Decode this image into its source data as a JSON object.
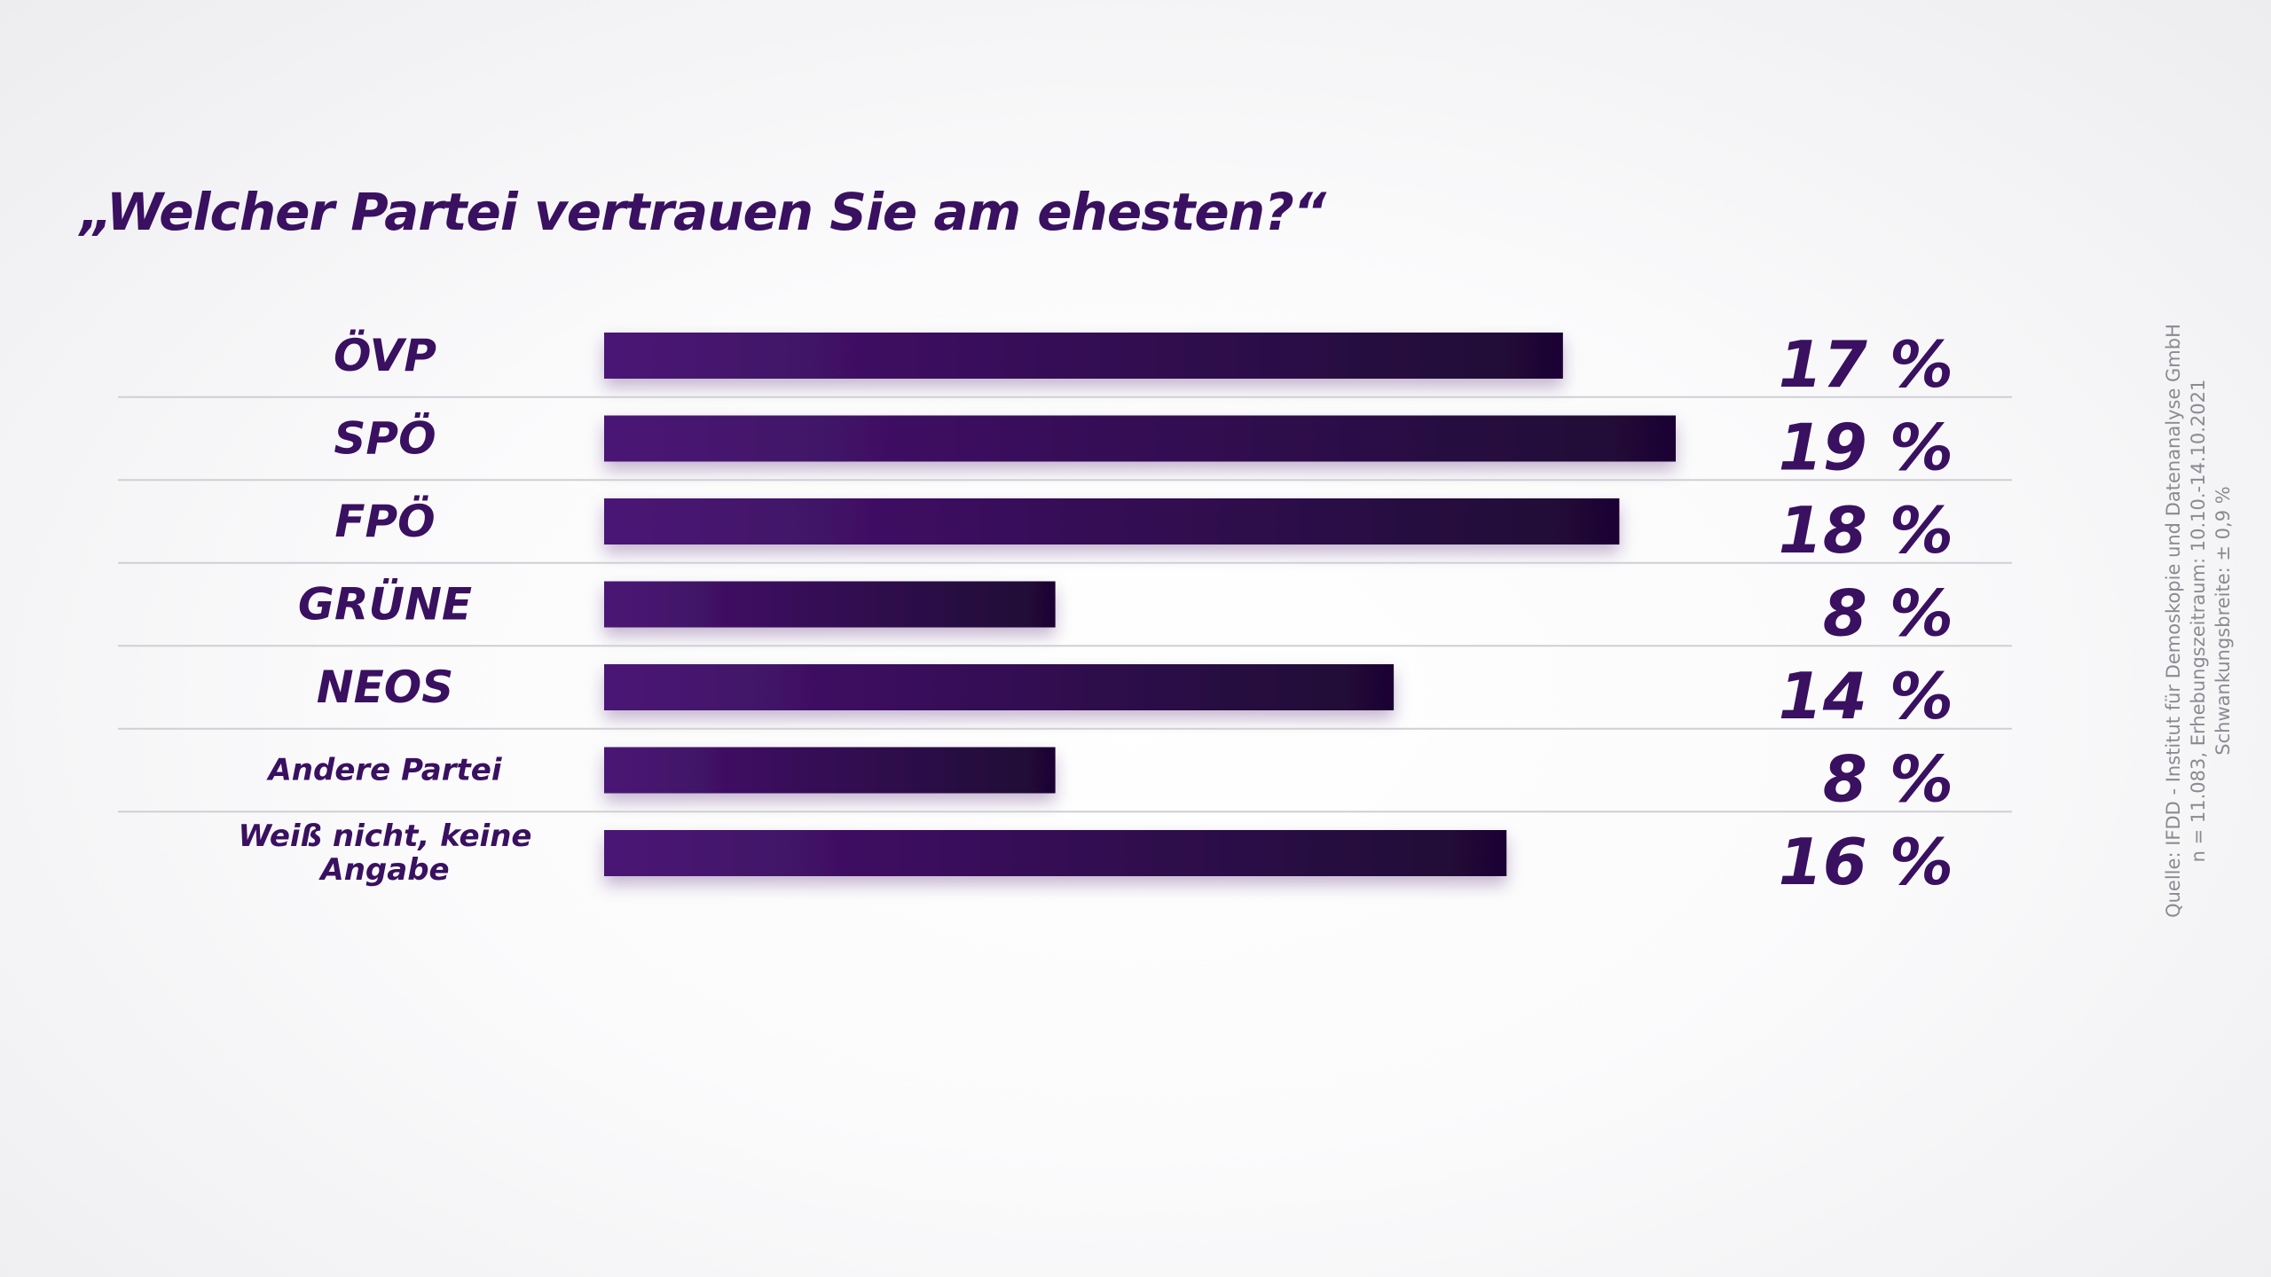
{
  "chart_data": {
    "type": "bar",
    "orientation": "horizontal",
    "title": "„Welcher Partei vertrauen Sie am ehesten?“",
    "categories": [
      "ÖVP",
      "SPÖ",
      "FPÖ",
      "GRÜNE",
      "NEOS",
      "Andere Partei",
      "Weiß nicht, keine Angabe"
    ],
    "category_lines": [
      [
        "ÖVP"
      ],
      [
        "SPÖ"
      ],
      [
        "FPÖ"
      ],
      [
        "GRÜNE"
      ],
      [
        "NEOS"
      ],
      [
        "Andere Partei"
      ],
      [
        "Weiß nicht, keine",
        "Angabe"
      ]
    ],
    "values": [
      17,
      19,
      18,
      8,
      14,
      8,
      16
    ],
    "value_labels": [
      "17 %",
      "19 %",
      "18 %",
      "8 %",
      "14 %",
      "8 %",
      "16 %"
    ],
    "unit": "%",
    "xlim": [
      0,
      19
    ],
    "grid": false,
    "legend": "none"
  },
  "source": {
    "line1": "Quelle: IFDD - Institut für Demoskopie und Datenanalyse GmbH",
    "line2": "n = 11.083, Erhebungszeitraum: 10.10.-14.10.2021",
    "line3": "Schwankungsbreite: ± 0,9 %"
  },
  "colors": {
    "bar_start": "#4a1575",
    "bar_end": "#1e0633",
    "text": "#3a1060",
    "divider": "#cfcfd4"
  }
}
